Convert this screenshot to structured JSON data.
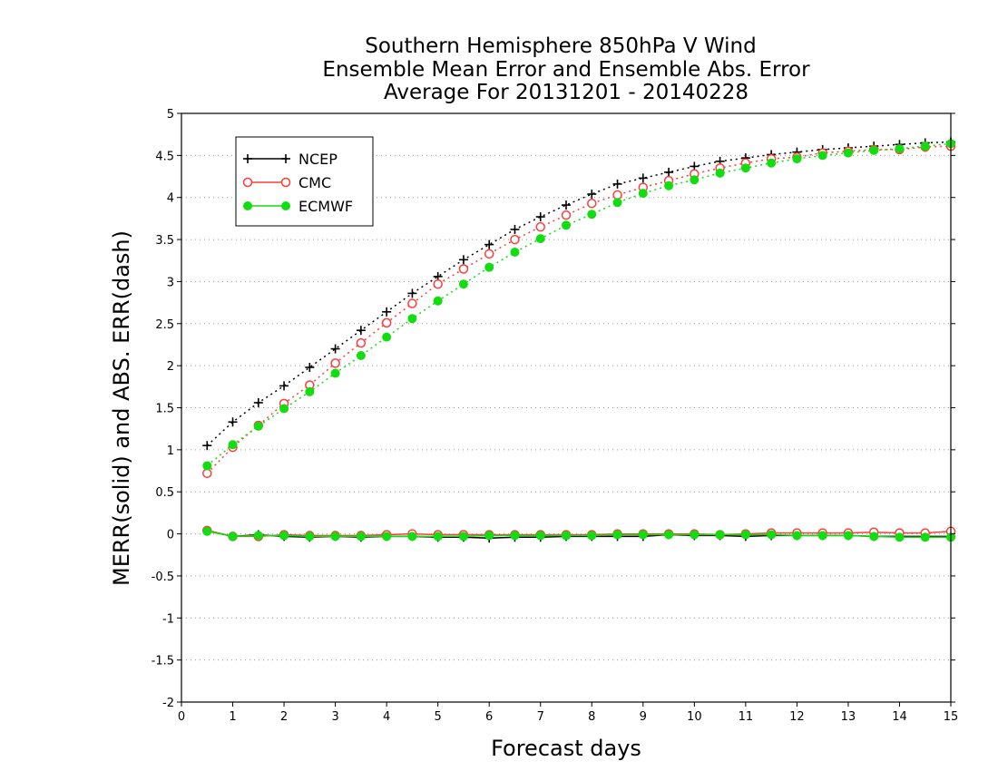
{
  "chart_data": {
    "type": "line",
    "title": [
      "Southern Hemisphere 850hPa V Wind",
      "Ensemble Mean Error and Ensemble Abs. Error",
      "Average For 20131201 - 20140228"
    ],
    "xlabel": "Forecast days",
    "ylabel": "MERR(solid) and ABS. ERR(dash)",
    "xlim": [
      0,
      15
    ],
    "ylim": [
      -2,
      5
    ],
    "xticks": [
      "0",
      "1",
      "2",
      "3",
      "4",
      "5",
      "6",
      "7",
      "8",
      "9",
      "10",
      "11",
      "12",
      "13",
      "14",
      "15"
    ],
    "yticks": [
      "5",
      "4.5",
      "4",
      "3.5",
      "3",
      "2.5",
      "2",
      "1.5",
      "1",
      "0.5",
      "0",
      "-0.5",
      "-1",
      "-1.5",
      "-2"
    ],
    "grid": "horizontal dotted",
    "legend_position": "top-left",
    "x": [
      0.5,
      1,
      1.5,
      2,
      2.5,
      3,
      3.5,
      4,
      4.5,
      5,
      5.5,
      6,
      6.5,
      7,
      7.5,
      8,
      8.5,
      9,
      9.5,
      10,
      10.5,
      11,
      11.5,
      12,
      12.5,
      13,
      13.5,
      14,
      14.5,
      15
    ],
    "series": [
      {
        "name": "NCEP",
        "color": "#000000",
        "marker": "plus",
        "abs_err": [
          1.05,
          1.33,
          1.56,
          1.76,
          1.98,
          2.2,
          2.42,
          2.64,
          2.86,
          3.06,
          3.26,
          3.44,
          3.62,
          3.77,
          3.91,
          4.04,
          4.16,
          4.23,
          4.3,
          4.37,
          4.43,
          4.47,
          4.51,
          4.54,
          4.57,
          4.59,
          4.61,
          4.63,
          4.65,
          4.66
        ],
        "mean_err": [
          0.04,
          -0.03,
          -0.01,
          -0.03,
          -0.04,
          -0.03,
          -0.04,
          -0.03,
          -0.03,
          -0.04,
          -0.04,
          -0.05,
          -0.04,
          -0.04,
          -0.03,
          -0.03,
          -0.03,
          -0.03,
          -0.01,
          -0.02,
          -0.02,
          -0.03,
          -0.02,
          -0.02,
          -0.02,
          -0.02,
          -0.03,
          -0.03,
          -0.03,
          -0.03
        ]
      },
      {
        "name": "CMC",
        "color": "#ff3b3b",
        "marker": "open-circle",
        "abs_err": [
          0.72,
          1.03,
          1.29,
          1.55,
          1.77,
          2.03,
          2.27,
          2.51,
          2.74,
          2.97,
          3.15,
          3.33,
          3.5,
          3.65,
          3.79,
          3.93,
          4.03,
          4.12,
          4.2,
          4.28,
          4.35,
          4.41,
          4.46,
          4.48,
          4.53,
          4.55,
          4.57,
          4.57,
          4.6,
          4.61
        ],
        "mean_err": [
          0.04,
          -0.03,
          -0.03,
          -0.01,
          -0.02,
          -0.02,
          -0.02,
          -0.01,
          0.0,
          -0.01,
          -0.01,
          -0.01,
          -0.01,
          -0.01,
          -0.01,
          -0.01,
          0.0,
          0.0,
          0.0,
          0.0,
          -0.01,
          0.0,
          0.01,
          0.01,
          0.01,
          0.01,
          0.02,
          0.01,
          0.01,
          0.03
        ]
      },
      {
        "name": "ECMWF",
        "color": "#11dd11",
        "marker": "filled-circle",
        "abs_err": [
          0.81,
          1.06,
          1.28,
          1.49,
          1.69,
          1.91,
          2.12,
          2.34,
          2.56,
          2.77,
          2.97,
          3.17,
          3.35,
          3.51,
          3.67,
          3.8,
          3.94,
          4.05,
          4.14,
          4.21,
          4.29,
          4.35,
          4.41,
          4.46,
          4.5,
          4.53,
          4.56,
          4.58,
          4.61,
          4.64
        ],
        "mean_err": [
          0.03,
          -0.03,
          -0.02,
          -0.02,
          -0.03,
          -0.03,
          -0.03,
          -0.03,
          -0.03,
          -0.03,
          -0.03,
          -0.02,
          -0.02,
          -0.02,
          -0.02,
          -0.02,
          -0.01,
          -0.01,
          -0.01,
          -0.01,
          -0.01,
          -0.01,
          -0.01,
          -0.02,
          -0.02,
          -0.02,
          -0.03,
          -0.04,
          -0.04,
          -0.04
        ]
      }
    ]
  }
}
